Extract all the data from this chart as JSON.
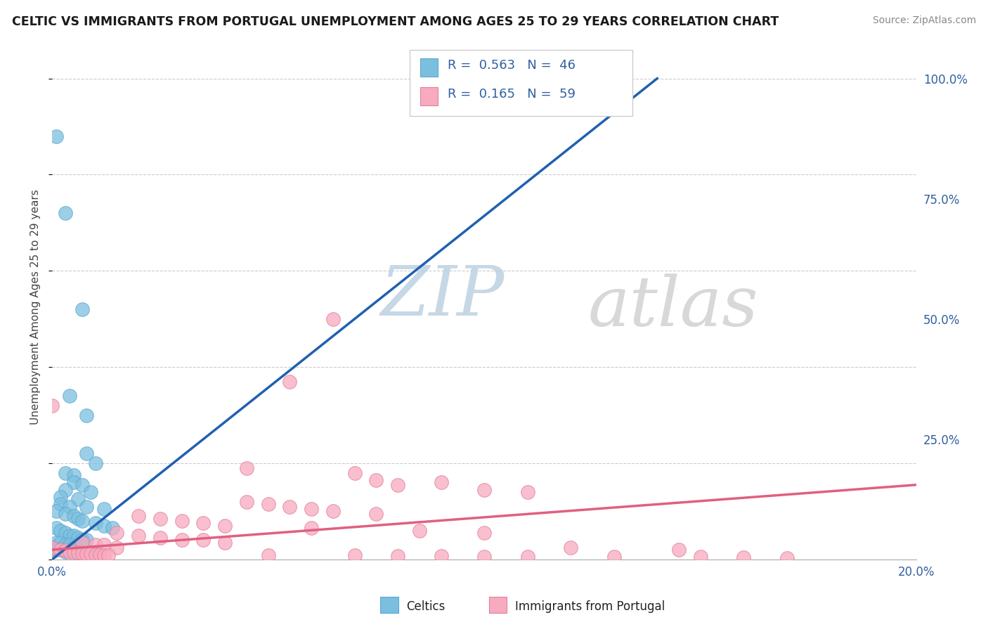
{
  "title": "CELTIC VS IMMIGRANTS FROM PORTUGAL UNEMPLOYMENT AMONG AGES 25 TO 29 YEARS CORRELATION CHART",
  "source": "Source: ZipAtlas.com",
  "ylabel": "Unemployment Among Ages 25 to 29 years",
  "xlim": [
    0.0,
    0.2
  ],
  "ylim": [
    0.0,
    1.05
  ],
  "celtics_color": "#7bbfdf",
  "celtics_edge": "#5aaacf",
  "portugal_color": "#f8aabe",
  "portugal_edge": "#e080a0",
  "celtics_line_color": "#2060b0",
  "portugal_line_color": "#e06080",
  "celtics_R": 0.563,
  "celtics_N": 46,
  "portugal_R": 0.165,
  "portugal_N": 59,
  "background_color": "#ffffff",
  "grid_color": "#cccccc",
  "celtics_line": [
    [
      0.0,
      0.0
    ],
    [
      0.14,
      1.0
    ]
  ],
  "portugal_line": [
    [
      0.0,
      0.02
    ],
    [
      0.2,
      0.155
    ]
  ],
  "celtics_scatter": [
    [
      0.001,
      0.88
    ],
    [
      0.003,
      0.72
    ],
    [
      0.007,
      0.52
    ],
    [
      0.004,
      0.34
    ],
    [
      0.008,
      0.3
    ],
    [
      0.008,
      0.22
    ],
    [
      0.01,
      0.2
    ],
    [
      0.003,
      0.18
    ],
    [
      0.005,
      0.175
    ],
    [
      0.005,
      0.16
    ],
    [
      0.007,
      0.155
    ],
    [
      0.003,
      0.145
    ],
    [
      0.009,
      0.14
    ],
    [
      0.002,
      0.13
    ],
    [
      0.006,
      0.125
    ],
    [
      0.002,
      0.115
    ],
    [
      0.004,
      0.11
    ],
    [
      0.008,
      0.11
    ],
    [
      0.012,
      0.105
    ],
    [
      0.001,
      0.1
    ],
    [
      0.003,
      0.095
    ],
    [
      0.005,
      0.09
    ],
    [
      0.006,
      0.085
    ],
    [
      0.007,
      0.08
    ],
    [
      0.01,
      0.075
    ],
    [
      0.012,
      0.07
    ],
    [
      0.014,
      0.065
    ],
    [
      0.001,
      0.065
    ],
    [
      0.002,
      0.06
    ],
    [
      0.003,
      0.055
    ],
    [
      0.004,
      0.05
    ],
    [
      0.005,
      0.05
    ],
    [
      0.006,
      0.045
    ],
    [
      0.007,
      0.04
    ],
    [
      0.008,
      0.04
    ],
    [
      0.001,
      0.035
    ],
    [
      0.002,
      0.035
    ],
    [
      0.003,
      0.03
    ],
    [
      0.004,
      0.03
    ],
    [
      0.005,
      0.025
    ],
    [
      0.0,
      0.025
    ],
    [
      0.001,
      0.02
    ],
    [
      0.002,
      0.02
    ],
    [
      0.0,
      0.015
    ],
    [
      0.003,
      0.015
    ],
    [
      0.01,
      0.012
    ]
  ],
  "portugal_scatter": [
    [
      0.065,
      0.5
    ],
    [
      0.055,
      0.37
    ],
    [
      0.0,
      0.32
    ],
    [
      0.045,
      0.19
    ],
    [
      0.07,
      0.18
    ],
    [
      0.075,
      0.165
    ],
    [
      0.09,
      0.16
    ],
    [
      0.08,
      0.155
    ],
    [
      0.1,
      0.145
    ],
    [
      0.11,
      0.14
    ],
    [
      0.045,
      0.12
    ],
    [
      0.05,
      0.115
    ],
    [
      0.055,
      0.11
    ],
    [
      0.06,
      0.105
    ],
    [
      0.065,
      0.1
    ],
    [
      0.075,
      0.095
    ],
    [
      0.02,
      0.09
    ],
    [
      0.025,
      0.085
    ],
    [
      0.03,
      0.08
    ],
    [
      0.035,
      0.075
    ],
    [
      0.04,
      0.07
    ],
    [
      0.06,
      0.065
    ],
    [
      0.085,
      0.06
    ],
    [
      0.1,
      0.055
    ],
    [
      0.015,
      0.055
    ],
    [
      0.02,
      0.05
    ],
    [
      0.025,
      0.045
    ],
    [
      0.03,
      0.04
    ],
    [
      0.035,
      0.04
    ],
    [
      0.04,
      0.035
    ],
    [
      0.007,
      0.035
    ],
    [
      0.01,
      0.03
    ],
    [
      0.012,
      0.03
    ],
    [
      0.015,
      0.025
    ],
    [
      0.12,
      0.025
    ],
    [
      0.145,
      0.02
    ],
    [
      0.0,
      0.025
    ],
    [
      0.002,
      0.02
    ],
    [
      0.003,
      0.018
    ],
    [
      0.004,
      0.016
    ],
    [
      0.005,
      0.015
    ],
    [
      0.006,
      0.014
    ],
    [
      0.007,
      0.013
    ],
    [
      0.008,
      0.012
    ],
    [
      0.009,
      0.011
    ],
    [
      0.01,
      0.01
    ],
    [
      0.011,
      0.01
    ],
    [
      0.012,
      0.009
    ],
    [
      0.013,
      0.009
    ],
    [
      0.05,
      0.008
    ],
    [
      0.07,
      0.008
    ],
    [
      0.08,
      0.007
    ],
    [
      0.09,
      0.007
    ],
    [
      0.1,
      0.006
    ],
    [
      0.11,
      0.006
    ],
    [
      0.13,
      0.005
    ],
    [
      0.15,
      0.005
    ],
    [
      0.16,
      0.004
    ],
    [
      0.17,
      0.003
    ]
  ]
}
